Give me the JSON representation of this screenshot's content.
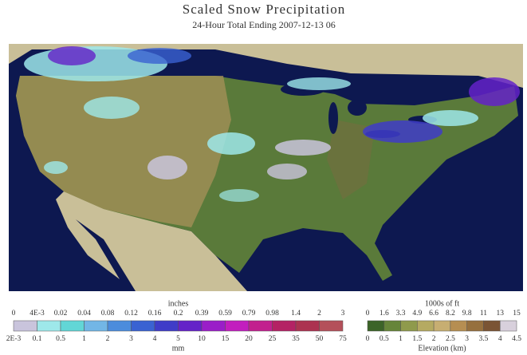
{
  "header": {
    "title": "Scaled Snow Precipitation",
    "subtitle": "24-Hour Total Ending 2007-12-13 06"
  },
  "snow_legend": {
    "top_unit": "inches",
    "top_labels": [
      "0",
      "4E-3",
      "0.02",
      "0.04",
      "0.08",
      "0.12",
      "0.16",
      "0.2",
      "0.39",
      "0.59",
      "0.79",
      "0.98",
      "1.4",
      "2",
      "3"
    ],
    "bottom_labels": [
      "2E-3",
      "0.1",
      "0.5",
      "1",
      "2",
      "3",
      "4",
      "5",
      "10",
      "15",
      "20",
      "25",
      "35",
      "50",
      "75"
    ],
    "bottom_unit": "mm",
    "colors": [
      "#c9c4dc",
      "#9ee8ea",
      "#62d6d6",
      "#72b6e6",
      "#4c8cdc",
      "#3a62d2",
      "#3f3cc8",
      "#6422c8",
      "#9a1ec8",
      "#c21ebe",
      "#c2208e",
      "#b42264",
      "#ac3250",
      "#b4505a"
    ]
  },
  "elevation_legend": {
    "top_unit": "1000s of ft",
    "top_labels": [
      "0",
      "1.6",
      "3.3",
      "4.9",
      "6.6",
      "8.2",
      "9.8",
      "11",
      "13",
      "15"
    ],
    "bottom_labels": [
      "0",
      "0.5",
      "1",
      "1.5",
      "2",
      "2.5",
      "3",
      "3.5",
      "4",
      "4.5"
    ],
    "bottom_unit": "Elevation (km)",
    "colors": [
      "#3c6428",
      "#66853a",
      "#8f9a4c",
      "#b5aa62",
      "#c7ae72",
      "#b68e52",
      "#96703e",
      "#7a5434",
      "#d8d0dc"
    ]
  }
}
